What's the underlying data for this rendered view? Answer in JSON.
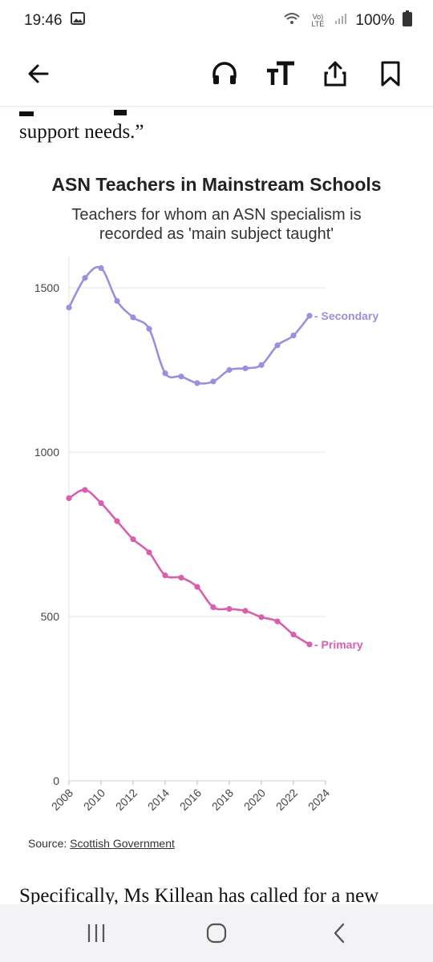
{
  "status": {
    "time": "19:46",
    "battery": "100%",
    "volte": "Vo) LTE"
  },
  "toolbar": {
    "icons": [
      "back-arrow-icon",
      "headphones-icon",
      "text-size-icon",
      "share-icon",
      "bookmark-icon"
    ]
  },
  "article": {
    "prev_text": "support needs.”",
    "next_text": "Specifically, Ms Killean has called for a new"
  },
  "chart": {
    "title": "ASN Teachers in Mainstream Schools",
    "subtitle_line1": "Teachers for whom an ASN specialism is",
    "subtitle_line2": "recorded as 'main subject taught'",
    "source_label": "Source: ",
    "source_link": "Scottish Government"
  },
  "chart_data": {
    "type": "line",
    "title": "ASN Teachers in Mainstream Schools",
    "subtitle": "Teachers for whom an ASN specialism is recorded as 'main subject taught'",
    "x": [
      2008,
      2009,
      2010,
      2011,
      2012,
      2013,
      2014,
      2015,
      2016,
      2017,
      2018,
      2019,
      2020,
      2021,
      2022,
      2023
    ],
    "series": [
      {
        "name": "Secondary",
        "color": "#9b8fe0",
        "values": [
          1440,
          1530,
          1560,
          1460,
          1410,
          1375,
          1240,
          1230,
          1210,
          1215,
          1250,
          1255,
          1265,
          1325,
          1355,
          1415
        ]
      },
      {
        "name": "Primary",
        "color": "#d85fae",
        "values": [
          860,
          885,
          845,
          790,
          735,
          695,
          625,
          618,
          590,
          528,
          523,
          517,
          498,
          485,
          445,
          415
        ]
      }
    ],
    "xlim": [
      2008,
      2024
    ],
    "ylim": [
      0,
      1600
    ],
    "xticks": [
      2008,
      2010,
      2012,
      2014,
      2016,
      2018,
      2020,
      2022,
      2024
    ],
    "yticks": [
      0,
      500,
      1000,
      1500
    ],
    "grid": true
  },
  "nav": {
    "icons": [
      "recent-apps-icon",
      "home-icon",
      "back-icon"
    ]
  }
}
